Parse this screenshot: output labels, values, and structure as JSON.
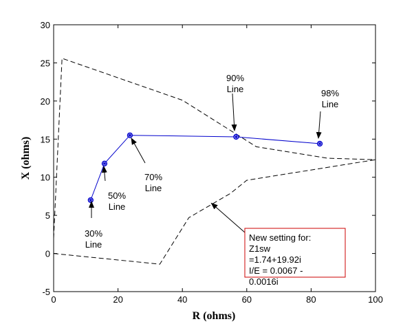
{
  "chart_data": {
    "type": "line",
    "xlabel": "R (ohms)",
    "ylabel": "X (ohms)",
    "xlim": [
      0,
      100
    ],
    "ylim": [
      -5,
      30
    ],
    "x_ticks": [
      0,
      20,
      40,
      60,
      80,
      100
    ],
    "y_ticks": [
      -5,
      0,
      5,
      10,
      15,
      20,
      25,
      30
    ],
    "grid": false,
    "series": [
      {
        "style": "dashed",
        "color": "#000000",
        "x": [
          0,
          2.6,
          40,
          63,
          85,
          100
        ],
        "y": [
          2,
          25.6,
          20.1,
          14,
          12.5,
          12.3
        ]
      },
      {
        "style": "dashed",
        "color": "#000000",
        "x": [
          0,
          33,
          42,
          55,
          60,
          100
        ],
        "y": [
          0,
          -1.4,
          4.7,
          7.9,
          9.6,
          12.3
        ]
      },
      {
        "style": "solid-markers",
        "color": "#0000cc",
        "x": [
          11.5,
          15.8,
          23.7,
          56.7,
          82.7
        ],
        "y": [
          7,
          11.8,
          15.5,
          15.3,
          14.4
        ]
      }
    ],
    "annotations": [
      {
        "lines": [
          "30%",
          "Line"
        ],
        "point_x": 11.5,
        "point_y": 7
      },
      {
        "lines": [
          "50%",
          "Line"
        ],
        "point_x": 15.8,
        "point_y": 11.8
      },
      {
        "lines": [
          "70%",
          "Line"
        ],
        "point_x": 23.7,
        "point_y": 15.5
      },
      {
        "lines": [
          "90%",
          "Line"
        ],
        "point_x": 56.7,
        "point_y": 15.3
      },
      {
        "lines": [
          "98%",
          "Line"
        ],
        "point_x": 82.7,
        "point_y": 14.4
      }
    ],
    "text_box": {
      "lines": [
        "New setting for:",
        "Z1sw",
        "=1.74+19.92i",
        "I/E = 0.0067 -",
        "0.0016i"
      ],
      "border_color": "#cc0000",
      "arrow_to": {
        "x": 49,
        "y": 6.6
      }
    }
  }
}
